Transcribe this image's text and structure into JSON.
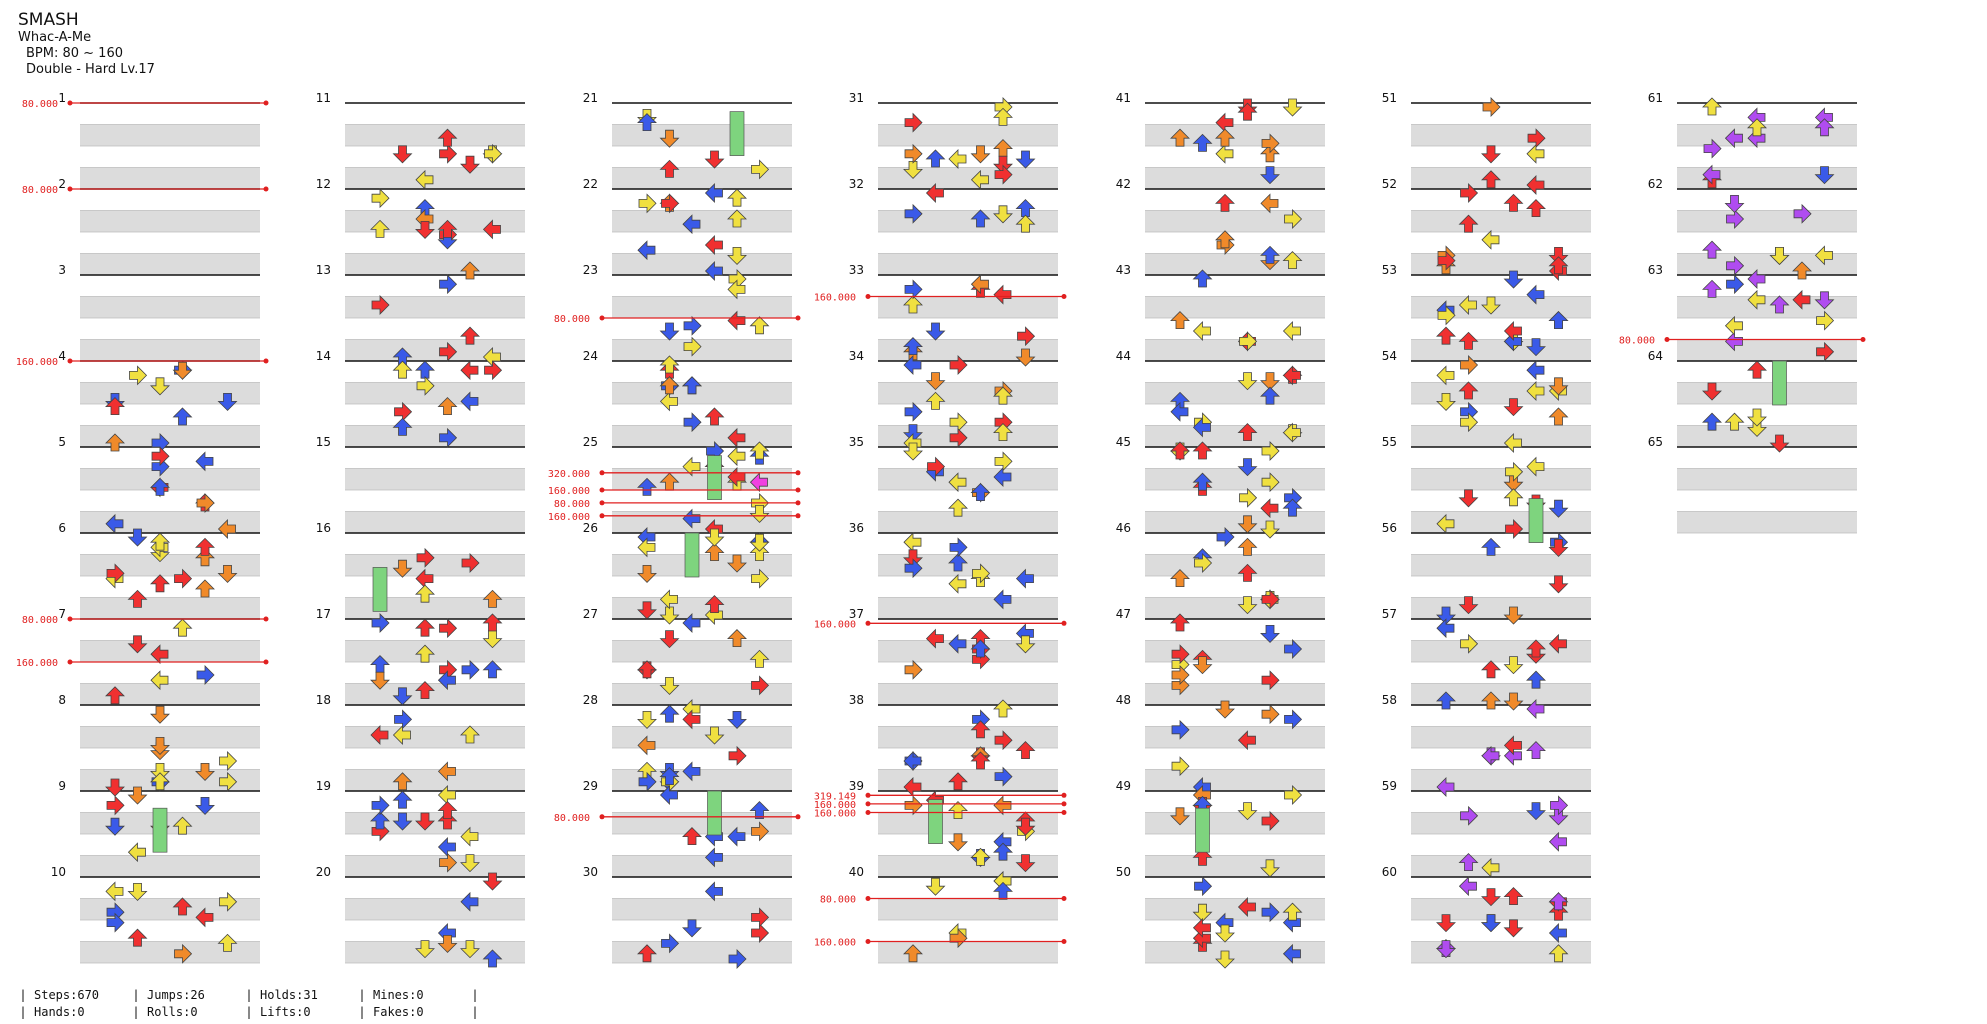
{
  "song": {
    "title": "SMASH",
    "artist": "Whac-A-Me",
    "bpm_text": "BPM: 80 ~ 160",
    "difficulty_text": "Double - Hard  Lv.17"
  },
  "measure_numbers": [
    "1",
    "2",
    "3",
    "4",
    "5",
    "6",
    "7",
    "8",
    "9",
    "10",
    "11",
    "12",
    "13",
    "14",
    "15",
    "16",
    "17",
    "18",
    "19",
    "20",
    "21",
    "22",
    "23",
    "24",
    "25",
    "26",
    "27",
    "28",
    "29",
    "30",
    "31",
    "32",
    "33",
    "34",
    "35",
    "36",
    "37",
    "38",
    "39",
    "40",
    "41",
    "42",
    "43",
    "44",
    "45",
    "46",
    "47",
    "48",
    "49",
    "50",
    "51",
    "52",
    "53",
    "54",
    "55",
    "56",
    "57",
    "58",
    "59",
    "60",
    "61",
    "62",
    "63",
    "64",
    "65"
  ],
  "bpm_changes": [
    {
      "label": "80.000",
      "measure": 1
    },
    {
      "label": "80.000",
      "measure": 2
    },
    {
      "label": "160.000",
      "measure": 4
    },
    {
      "label": "80.000",
      "measure": 7
    },
    {
      "label": "160.000",
      "measure": 7.5
    },
    {
      "label": "80.000",
      "measure": 23.5
    },
    {
      "label": "320.000",
      "measure": 25.3
    },
    {
      "label": "160.000",
      "measure": 25.5
    },
    {
      "label": "80.000",
      "measure": 25.65
    },
    {
      "label": "160.000",
      "measure": 25.8
    },
    {
      "label": "160.000",
      "measure": 33.25
    },
    {
      "label": "160.000",
      "measure": 37.05
    },
    {
      "label": "80.000",
      "measure": 29.3
    },
    {
      "label": "319.149",
      "measure": 39.05
    },
    {
      "label": "160.000",
      "measure": 39.15
    },
    {
      "label": "160.000",
      "measure": 39.25
    },
    {
      "label": "80.000",
      "measure": 40.25
    },
    {
      "label": "160.000",
      "measure": 40.75
    },
    {
      "label": "80.000",
      "measure": 63.75
    }
  ],
  "colors": {
    "red": "#f03030",
    "blue": "#3a5ae8",
    "yellow": "#f0e040",
    "orange": "#f08a2a",
    "purple": "#b04cf0",
    "cyan": "#40e0f0",
    "magenta": "#f040e0",
    "hold": "#7ed47e",
    "bpm_line": "#e02020",
    "measure_bg": "#dcdcdc",
    "beat_line": "#111111"
  },
  "stats": {
    "steps": "Steps:670",
    "jumps": "Jumps:26",
    "holds": "Holds:31",
    "mines": "Mines:0",
    "hands": "Hands:0",
    "rolls": "Rolls:0",
    "lifts": "Lifts:0",
    "fakes": "Fakes:0"
  }
}
